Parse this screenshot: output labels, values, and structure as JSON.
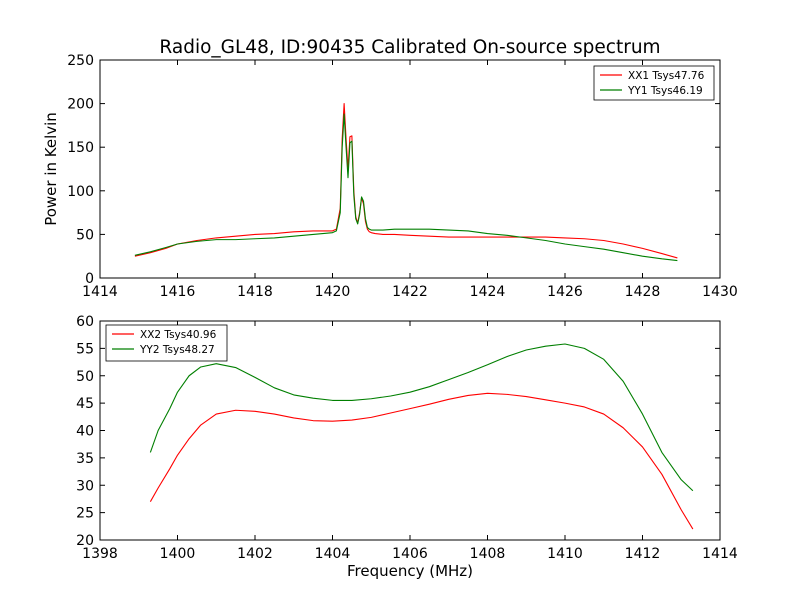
{
  "figure": {
    "title": "Radio_GL48, ID:90435 Calibrated On-source spectrum"
  },
  "chart_data": [
    {
      "type": "line",
      "title": "Radio_GL48, ID:90435 Calibrated On-source spectrum",
      "xlabel": "",
      "ylabel": "Power in Kelvin",
      "xlim": [
        1414,
        1430
      ],
      "ylim": [
        0,
        250
      ],
      "xticks": [
        1414,
        1416,
        1418,
        1420,
        1422,
        1424,
        1426,
        1428,
        1430
      ],
      "yticks": [
        0,
        50,
        100,
        150,
        200,
        250
      ],
      "grid": false,
      "legend": "top-right",
      "series": [
        {
          "name": "XX1 Tsys47.76",
          "color": "#ff0000",
          "x": [
            1414.9,
            1415.3,
            1415.7,
            1416.0,
            1416.5,
            1417.0,
            1417.5,
            1418.0,
            1418.5,
            1419.0,
            1419.5,
            1420.0,
            1420.1,
            1420.2,
            1420.25,
            1420.3,
            1420.35,
            1420.4,
            1420.45,
            1420.5,
            1420.55,
            1420.6,
            1420.65,
            1420.7,
            1420.75,
            1420.8,
            1420.85,
            1420.9,
            1420.95,
            1421.0,
            1421.1,
            1421.3,
            1421.6,
            1422.0,
            1422.5,
            1423.0,
            1423.5,
            1424.0,
            1424.5,
            1425.0,
            1425.5,
            1426.0,
            1426.5,
            1427.0,
            1427.5,
            1428.0,
            1428.5,
            1428.9
          ],
          "y": [
            25,
            29,
            34,
            39,
            43,
            46,
            48,
            50,
            51,
            53,
            54,
            54,
            56,
            80,
            160,
            200,
            160,
            125,
            162,
            163,
            100,
            70,
            63,
            75,
            92,
            85,
            65,
            56,
            53,
            52,
            51,
            50,
            50,
            49,
            48,
            47,
            47,
            47,
            47,
            47,
            47,
            46,
            45,
            43,
            39,
            34,
            28,
            23
          ]
        },
        {
          "name": "YY1 Tsys46.19",
          "color": "#007f00",
          "x": [
            1414.9,
            1415.3,
            1415.7,
            1416.0,
            1416.5,
            1417.0,
            1417.5,
            1418.0,
            1418.5,
            1419.0,
            1419.5,
            1420.0,
            1420.1,
            1420.2,
            1420.25,
            1420.3,
            1420.35,
            1420.4,
            1420.45,
            1420.5,
            1420.55,
            1420.6,
            1420.65,
            1420.7,
            1420.75,
            1420.8,
            1420.85,
            1420.9,
            1420.95,
            1421.0,
            1421.3,
            1421.6,
            1422.0,
            1422.5,
            1423.0,
            1423.5,
            1424.0,
            1424.5,
            1425.0,
            1425.5,
            1426.0,
            1426.5,
            1427.0,
            1427.5,
            1428.0,
            1428.5,
            1428.9
          ],
          "y": [
            26,
            30,
            35,
            39,
            42,
            44,
            44,
            45,
            46,
            48,
            50,
            52,
            54,
            75,
            150,
            188,
            150,
            115,
            155,
            157,
            95,
            68,
            62,
            73,
            93,
            88,
            68,
            58,
            56,
            55,
            55,
            56,
            56,
            56,
            55,
            54,
            51,
            49,
            46,
            43,
            39,
            36,
            33,
            29,
            25,
            22,
            20
          ]
        }
      ]
    },
    {
      "type": "line",
      "title": "",
      "xlabel": "Frequency (MHz)",
      "ylabel": "",
      "xlim": [
        1398,
        1414
      ],
      "ylim": [
        20,
        60
      ],
      "xticks": [
        1398,
        1400,
        1402,
        1404,
        1406,
        1408,
        1410,
        1412,
        1414
      ],
      "yticks": [
        20,
        25,
        30,
        35,
        40,
        45,
        50,
        55,
        60
      ],
      "grid": false,
      "legend": "top-left",
      "series": [
        {
          "name": "XX2 Tsys40.96",
          "color": "#ff0000",
          "x": [
            1399.3,
            1399.5,
            1399.8,
            1400.0,
            1400.3,
            1400.6,
            1401.0,
            1401.5,
            1402.0,
            1402.5,
            1403.0,
            1403.5,
            1404.0,
            1404.5,
            1405.0,
            1405.5,
            1406.0,
            1406.5,
            1407.0,
            1407.5,
            1408.0,
            1408.5,
            1409.0,
            1409.5,
            1410.0,
            1410.5,
            1411.0,
            1411.5,
            1412.0,
            1412.5,
            1413.0,
            1413.3
          ],
          "y": [
            27,
            29.5,
            33,
            35.5,
            38.5,
            41,
            43,
            43.7,
            43.5,
            43,
            42.3,
            41.8,
            41.7,
            41.9,
            42.4,
            43.2,
            44,
            44.8,
            45.7,
            46.4,
            46.8,
            46.6,
            46.2,
            45.6,
            45,
            44.3,
            43,
            40.5,
            37,
            32,
            25.5,
            22
          ]
        },
        {
          "name": "YY2 Tsys48.27",
          "color": "#007f00",
          "x": [
            1399.3,
            1399.5,
            1399.8,
            1400.0,
            1400.3,
            1400.6,
            1401.0,
            1401.5,
            1402.0,
            1402.5,
            1403.0,
            1403.5,
            1404.0,
            1404.5,
            1405.0,
            1405.5,
            1406.0,
            1406.5,
            1407.0,
            1407.5,
            1408.0,
            1408.5,
            1409.0,
            1409.5,
            1410.0,
            1410.5,
            1411.0,
            1411.5,
            1412.0,
            1412.5,
            1413.0,
            1413.3
          ],
          "y": [
            36,
            40,
            44,
            47,
            50,
            51.6,
            52.2,
            51.5,
            49.7,
            47.8,
            46.5,
            45.9,
            45.5,
            45.5,
            45.8,
            46.3,
            47,
            48,
            49.3,
            50.6,
            52,
            53.5,
            54.7,
            55.4,
            55.8,
            55,
            53,
            49,
            43,
            36,
            31,
            29
          ]
        }
      ]
    }
  ]
}
